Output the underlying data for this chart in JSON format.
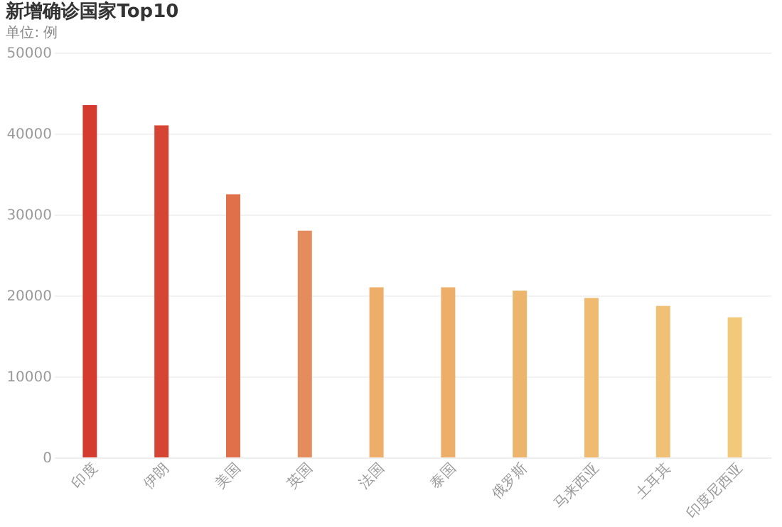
{
  "chart_data": {
    "type": "bar",
    "title": "新增确诊国家Top10",
    "subtitle": "单位: 例",
    "categories": [
      "印度",
      "伊朗",
      "美国",
      "英国",
      "法国",
      "泰国",
      "俄罗斯",
      "马来西亚",
      "土耳其",
      "印度尼西亚"
    ],
    "values": [
      43500,
      41000,
      32500,
      28000,
      21000,
      21000,
      20600,
      19700,
      18700,
      17300
    ],
    "colors": [
      "#d43a2e",
      "#d64433",
      "#e0704a",
      "#e58c5e",
      "#ecae68",
      "#ecae68",
      "#edb46b",
      "#efbb70",
      "#f0c074",
      "#f2c97a"
    ],
    "ylim": [
      0,
      50000
    ],
    "yticks": [
      0,
      10000,
      20000,
      30000,
      40000,
      50000
    ],
    "grid": "y"
  }
}
